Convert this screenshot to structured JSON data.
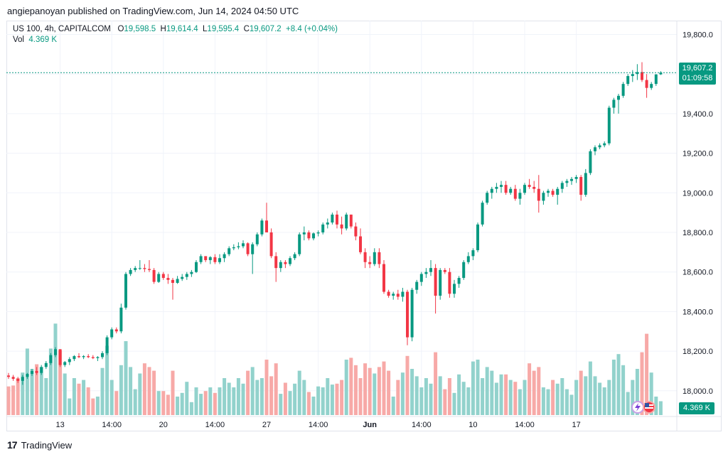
{
  "publisher_text": "angiepanoyan published on TradingView.com, Jun 14, 2024 04:50 UTC",
  "legend": {
    "symbol": "US 100, 4h, CAPITALCOM",
    "o_label": "O",
    "o_value": "19,598.5",
    "h_label": "H",
    "h_value": "19,614.4",
    "l_label": "L",
    "l_value": "19,595.4",
    "c_label": "C",
    "c_value": "19,607.2",
    "change": "+8.4 (+0.04%)",
    "vol_label": "Vol",
    "vol_value": "4.369 K"
  },
  "price_tag": {
    "price": "19,607.2",
    "countdown": "01:09:58"
  },
  "vol_tag": "4.369 K",
  "footer": {
    "brand": "TradingView"
  },
  "colors": {
    "up": "#089981",
    "down": "#f23645",
    "vol_up": "#92d2cc",
    "vol_down": "#f7a9a7",
    "grid": "#f0f3fa",
    "last_line": "#089981"
  },
  "chart_data": {
    "type": "candlestick",
    "title": "US 100, 4h, CAPITALCOM",
    "y_ticks": [
      "19,800.0",
      "19,600.0",
      "19,400.0",
      "19,200.0",
      "19,000.0",
      "18,800.0",
      "18,600.0",
      "18,400.0",
      "18,200.0",
      "18,000.0"
    ],
    "y_tick_values": [
      19800,
      19600,
      19400,
      19200,
      19000,
      18800,
      18600,
      18400,
      18200,
      18000
    ],
    "ylim": [
      17870,
      19870
    ],
    "last_price": 19607.2,
    "x_ticks": [
      {
        "label": "13",
        "index": 11,
        "bold": false
      },
      {
        "label": "14:00",
        "index": 22,
        "bold": false
      },
      {
        "label": "20",
        "index": 33,
        "bold": false
      },
      {
        "label": "14:00",
        "index": 44,
        "bold": false
      },
      {
        "label": "27",
        "index": 55,
        "bold": false
      },
      {
        "label": "14:00",
        "index": 66,
        "bold": false
      },
      {
        "label": "Jun",
        "index": 77,
        "bold": true
      },
      {
        "label": "14:00",
        "index": 88,
        "bold": false
      },
      {
        "label": "10",
        "index": 99,
        "bold": false
      },
      {
        "label": "14:00",
        "index": 110,
        "bold": false
      },
      {
        "label": "17",
        "index": 121,
        "bold": false
      }
    ],
    "candles": [
      [
        18077,
        18090,
        18060,
        18070,
        31
      ],
      [
        18070,
        18080,
        18050,
        18060,
        32
      ],
      [
        18060,
        18070,
        18040,
        18050,
        40
      ],
      [
        18050,
        18080,
        18030,
        18070,
        46
      ],
      [
        18070,
        18090,
        18060,
        18085,
        72
      ],
      [
        18085,
        18110,
        18075,
        18100,
        50
      ],
      [
        18100,
        18120,
        18080,
        18090,
        55
      ],
      [
        18090,
        18130,
        18080,
        18120,
        52
      ],
      [
        18120,
        18150,
        18110,
        18140,
        40
      ],
      [
        18140,
        18190,
        18130,
        18180,
        72
      ],
      [
        18180,
        18220,
        18170,
        18210,
        99
      ],
      [
        18210,
        18200,
        18120,
        18130,
        70
      ],
      [
        18130,
        18150,
        18120,
        18145,
        45
      ],
      [
        18145,
        18170,
        18130,
        18160,
        18
      ],
      [
        18160,
        18180,
        18150,
        18175,
        40
      ],
      [
        18175,
        18190,
        18165,
        18170,
        34
      ],
      [
        18170,
        18180,
        18160,
        18175,
        38
      ],
      [
        18175,
        18185,
        18165,
        18170,
        30
      ],
      [
        18170,
        18180,
        18160,
        18165,
        18
      ],
      [
        18165,
        18175,
        18150,
        18170,
        20
      ],
      [
        18170,
        18200,
        18160,
        18190,
        51
      ],
      [
        18190,
        18280,
        18180,
        18270,
        75
      ],
      [
        18270,
        18320,
        18260,
        18310,
        38
      ],
      [
        18310,
        18320,
        18290,
        18300,
        26
      ],
      [
        18300,
        18440,
        18290,
        18420,
        54
      ],
      [
        18420,
        18600,
        18410,
        18590,
        80
      ],
      [
        18590,
        18620,
        18580,
        18610,
        52
      ],
      [
        18610,
        18630,
        18600,
        18620,
        28
      ],
      [
        18620,
        18660,
        18610,
        18620,
        45
      ],
      [
        18620,
        18640,
        18600,
        18615,
        56
      ],
      [
        18615,
        18660,
        18600,
        18610,
        52
      ],
      [
        18610,
        18620,
        18540,
        18550,
        48
      ],
      [
        18550,
        18600,
        18545,
        18590,
        26
      ],
      [
        18590,
        18600,
        18560,
        18570,
        26
      ],
      [
        18570,
        18590,
        18540,
        18560,
        22
      ],
      [
        18560,
        18570,
        18460,
        18545,
        48
      ],
      [
        18545,
        18580,
        18540,
        18565,
        20
      ],
      [
        18565,
        18590,
        18555,
        18575,
        24
      ],
      [
        18575,
        18600,
        18560,
        18590,
        36
      ],
      [
        18590,
        18610,
        18575,
        18600,
        14
      ],
      [
        18600,
        18660,
        18595,
        18650,
        30
      ],
      [
        18650,
        18690,
        18640,
        18680,
        23
      ],
      [
        18680,
        18680,
        18650,
        18660,
        26
      ],
      [
        18660,
        18680,
        18640,
        18675,
        30
      ],
      [
        18675,
        18690,
        18640,
        18650,
        24
      ],
      [
        18650,
        18690,
        18640,
        18670,
        30
      ],
      [
        18670,
        18700,
        18650,
        18690,
        40
      ],
      [
        18690,
        18730,
        18680,
        18720,
        35
      ],
      [
        18720,
        18740,
        18710,
        18725,
        30
      ],
      [
        18725,
        18750,
        18715,
        18730,
        40
      ],
      [
        18730,
        18760,
        18720,
        18745,
        34
      ],
      [
        18745,
        18750,
        18680,
        18690,
        48
      ],
      [
        18690,
        18750,
        18590,
        18740,
        52
      ],
      [
        18740,
        18800,
        18730,
        18790,
        38
      ],
      [
        18790,
        18870,
        18780,
        18860,
        40
      ],
      [
        18860,
        18950,
        18800,
        18800,
        60
      ],
      [
        18800,
        18820,
        18670,
        18680,
        42
      ],
      [
        18680,
        18700,
        18550,
        18620,
        56
      ],
      [
        18620,
        18660,
        18600,
        18650,
        23
      ],
      [
        18650,
        18660,
        18620,
        18640,
        35
      ],
      [
        18640,
        18680,
        18630,
        18670,
        26
      ],
      [
        18670,
        18700,
        18660,
        18690,
        34
      ],
      [
        18690,
        18800,
        18680,
        18790,
        48
      ],
      [
        18790,
        18830,
        18760,
        18800,
        38
      ],
      [
        18800,
        18810,
        18760,
        18770,
        25
      ],
      [
        18770,
        18800,
        18760,
        18795,
        20
      ],
      [
        18795,
        18810,
        18780,
        18800,
        31
      ],
      [
        18800,
        18850,
        18790,
        18840,
        30
      ],
      [
        18840,
        18870,
        18820,
        18850,
        40
      ],
      [
        18850,
        18900,
        18840,
        18890,
        33
      ],
      [
        18890,
        18910,
        18820,
        18840,
        34
      ],
      [
        18840,
        18880,
        18790,
        18820,
        38
      ],
      [
        18820,
        18900,
        18810,
        18890,
        60
      ],
      [
        18890,
        18890,
        18820,
        18830,
        62
      ],
      [
        18830,
        18850,
        18760,
        18780,
        54
      ],
      [
        18780,
        18820,
        18690,
        18700,
        40
      ],
      [
        18700,
        18720,
        18620,
        18650,
        56
      ],
      [
        18650,
        18680,
        18620,
        18640,
        51
      ],
      [
        18640,
        18720,
        18630,
        18700,
        45
      ],
      [
        18700,
        18720,
        18620,
        18640,
        52
      ],
      [
        18640,
        18660,
        18490,
        18500,
        58
      ],
      [
        18500,
        18510,
        18470,
        18480,
        48
      ],
      [
        18480,
        18500,
        18460,
        18490,
        20
      ],
      [
        18490,
        18510,
        18460,
        18475,
        38
      ],
      [
        18475,
        18520,
        18450,
        18500,
        46
      ],
      [
        18500,
        18510,
        18230,
        18270,
        64
      ],
      [
        18270,
        18520,
        18250,
        18510,
        50
      ],
      [
        18510,
        18560,
        18490,
        18550,
        42
      ],
      [
        18550,
        18600,
        18530,
        18590,
        30
      ],
      [
        18590,
        18620,
        18570,
        18600,
        40
      ],
      [
        18600,
        18660,
        18580,
        18620,
        34
      ],
      [
        18620,
        18640,
        18390,
        18480,
        68
      ],
      [
        18480,
        18620,
        18460,
        18610,
        42
      ],
      [
        18610,
        18620,
        18590,
        18600,
        28
      ],
      [
        18600,
        18620,
        18470,
        18490,
        40
      ],
      [
        18490,
        18560,
        18470,
        18540,
        24
      ],
      [
        18540,
        18580,
        18520,
        18570,
        44
      ],
      [
        18570,
        18660,
        18560,
        18650,
        36
      ],
      [
        18650,
        18700,
        18640,
        18680,
        30
      ],
      [
        18680,
        18720,
        18660,
        18710,
        58
      ],
      [
        18710,
        18850,
        18700,
        18840,
        60
      ],
      [
        18840,
        18960,
        18830,
        18950,
        40
      ],
      [
        18950,
        19010,
        18940,
        19000,
        52
      ],
      [
        19000,
        19030,
        18970,
        19020,
        48
      ],
      [
        19020,
        19050,
        19000,
        19030,
        35
      ],
      [
        19030,
        19060,
        19000,
        19040,
        44
      ],
      [
        19040,
        19060,
        18990,
        19000,
        44
      ],
      [
        19000,
        19030,
        18990,
        19020,
        38
      ],
      [
        19020,
        19040,
        18960,
        18970,
        36
      ],
      [
        18970,
        19020,
        18940,
        19000,
        28
      ],
      [
        19000,
        19050,
        18990,
        19040,
        38
      ],
      [
        19040,
        19070,
        19020,
        19030,
        56
      ],
      [
        19030,
        19060,
        19000,
        19020,
        48
      ],
      [
        19020,
        19090,
        18900,
        18960,
        52
      ],
      [
        18960,
        19010,
        18940,
        19000,
        30
      ],
      [
        19000,
        19020,
        18980,
        19010,
        28
      ],
      [
        19010,
        19020,
        18980,
        18990,
        38
      ],
      [
        18990,
        19030,
        18940,
        19020,
        34
      ],
      [
        19020,
        19060,
        19000,
        19050,
        40
      ],
      [
        19050,
        19070,
        19030,
        19060,
        28
      ],
      [
        19060,
        19080,
        19040,
        19070,
        22
      ],
      [
        19070,
        19090,
        19050,
        19080,
        38
      ],
      [
        19080,
        19090,
        18960,
        18990,
        48
      ],
      [
        18990,
        19120,
        18980,
        19100,
        42
      ],
      [
        19100,
        19220,
        19090,
        19210,
        58
      ],
      [
        19210,
        19240,
        19190,
        19230,
        42
      ],
      [
        19230,
        19250,
        19220,
        19240,
        35
      ],
      [
        19240,
        19260,
        19230,
        19250,
        30
      ],
      [
        19250,
        19440,
        19240,
        19430,
        38
      ],
      [
        19430,
        19480,
        19400,
        19470,
        60
      ],
      [
        19470,
        19500,
        19400,
        19490,
        66
      ],
      [
        19490,
        19560,
        19480,
        19550,
        54
      ],
      [
        19550,
        19600,
        19540,
        19590,
        25
      ],
      [
        19590,
        19620,
        19560,
        19600,
        38
      ],
      [
        19600,
        19650,
        19570,
        19610,
        50
      ],
      [
        19610,
        19660,
        19560,
        19570,
        68
      ],
      [
        19570,
        19600,
        19480,
        19530,
        88
      ],
      [
        19530,
        19560,
        19520,
        19550,
        46
      ],
      [
        19550,
        19600,
        19540,
        19598,
        20
      ],
      [
        19598.5,
        19614.4,
        19595.4,
        19607.2,
        15
      ]
    ]
  }
}
